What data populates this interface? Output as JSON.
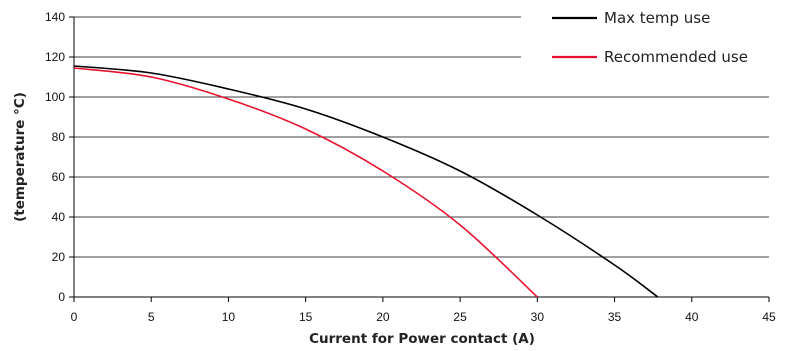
{
  "chart_data": {
    "type": "line",
    "title": "",
    "xlabel": "Current for Power contact (A)",
    "ylabel": "(temperature °C)",
    "xlim": [
      0,
      45
    ],
    "ylim": [
      0,
      140
    ],
    "xticks": [
      0,
      5,
      10,
      15,
      20,
      25,
      30,
      35,
      40,
      45
    ],
    "yticks": [
      0,
      20,
      40,
      60,
      80,
      100,
      120,
      140
    ],
    "x_tick_labels": [
      "0",
      "5",
      "10",
      "15",
      "20",
      "25",
      "30",
      "35",
      "40",
      "45"
    ],
    "y_tick_labels": [
      "0",
      "20",
      "40",
      "60",
      "80",
      "100",
      "120",
      "140"
    ],
    "grid": "horizontal",
    "legend_position": "top-right",
    "series": [
      {
        "name": "Max temp use",
        "color": "#000000",
        "x": [
          0,
          5,
          10,
          15,
          20,
          25,
          30,
          35,
          37.8
        ],
        "y": [
          115.5,
          112,
          104,
          94,
          80,
          63,
          41,
          16,
          0
        ]
      },
      {
        "name": "Recommended use",
        "color": "#e8112d",
        "x": [
          0,
          5,
          10,
          15,
          20,
          25,
          30
        ],
        "y": [
          114.5,
          110,
          99,
          84,
          63,
          36,
          0
        ]
      }
    ]
  }
}
